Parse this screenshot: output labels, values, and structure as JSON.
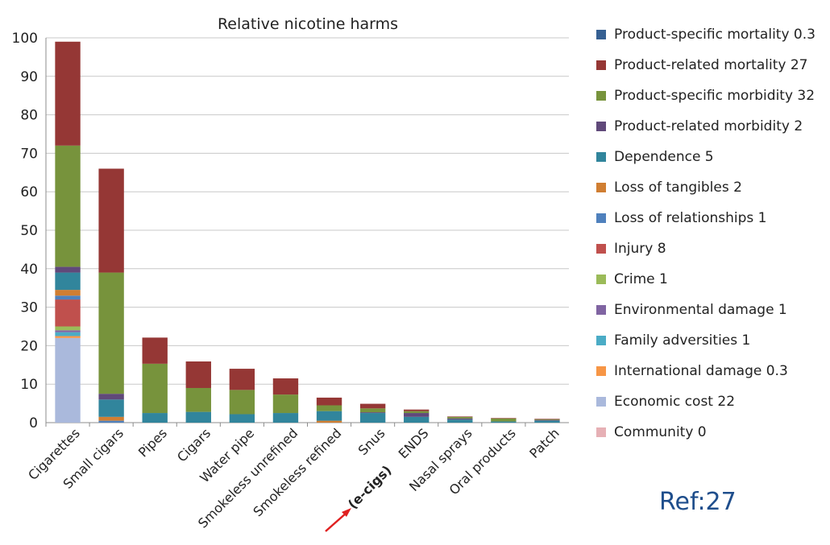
{
  "chart_data": {
    "type": "bar",
    "stacked": true,
    "title": "Relative nicotine harms",
    "categories": [
      "Cigarettes",
      "Small cigars",
      "Pipes",
      "Cigars",
      "Water pipe",
      "Smokeless unrefined",
      "Smokeless refined",
      "Snus",
      "ENDS",
      "Nasal sprays",
      "Oral products",
      "Patch"
    ],
    "annotation": "(e-cigs)",
    "ylim": [
      0,
      100
    ],
    "yticks": [
      0,
      10,
      20,
      30,
      40,
      50,
      60,
      70,
      80,
      90,
      100
    ],
    "grid": true,
    "legend_position": "right",
    "series": [
      {
        "name": "Community 0",
        "color": "#e6b0b5",
        "values": [
          0,
          0,
          0,
          0,
          0,
          0,
          0,
          0,
          0,
          0,
          0,
          0
        ]
      },
      {
        "name": "Economic cost 22",
        "color": "#aab9dc",
        "values": [
          22,
          0,
          0,
          0,
          0,
          0,
          0,
          0,
          0,
          0,
          0,
          0
        ]
      },
      {
        "name": "International damage 0.3",
        "color": "#f79646",
        "values": [
          0.5,
          0,
          0,
          0,
          0,
          0,
          0,
          0,
          0,
          0,
          0,
          0
        ]
      },
      {
        "name": "Family adversities 1",
        "color": "#4bacc6",
        "values": [
          1,
          0,
          0,
          0,
          0,
          0,
          0,
          0,
          0,
          0,
          0,
          0
        ]
      },
      {
        "name": "Environmental damage 1",
        "color": "#8064a2",
        "values": [
          0.5,
          0,
          0,
          0,
          0,
          0,
          0,
          0,
          0,
          0,
          0,
          0
        ]
      },
      {
        "name": "Crime 1",
        "color": "#9bbb59",
        "values": [
          1,
          0,
          0,
          0,
          0,
          0,
          0,
          0,
          0,
          0,
          0,
          0
        ]
      },
      {
        "name": "Injury 8",
        "color": "#c0504d",
        "values": [
          7,
          0,
          0,
          0,
          0,
          0,
          0,
          0,
          0,
          0,
          0,
          0
        ]
      },
      {
        "name": "Loss of relationships 1",
        "color": "#4f81bd",
        "values": [
          1,
          0.5,
          0,
          0,
          0,
          0,
          0,
          0,
          0,
          0,
          0,
          0
        ]
      },
      {
        "name": "Loss of tangibles 2",
        "color": "#d07e32",
        "values": [
          1.5,
          1,
          0,
          0,
          0,
          0,
          0.5,
          0,
          0,
          0,
          0,
          0
        ]
      },
      {
        "name": "Dependence 5",
        "color": "#31859c",
        "values": [
          4.5,
          4.5,
          2.5,
          2.8,
          2.2,
          2.5,
          2.5,
          2.5,
          1.5,
          0.8,
          0.3,
          0.5
        ]
      },
      {
        "name": "Product-related morbidity 2",
        "color": "#60497a",
        "values": [
          1.5,
          1.5,
          0,
          0,
          0,
          0,
          0,
          0.2,
          1,
          0.3,
          0,
          0.2
        ]
      },
      {
        "name": "Product-specific morbidity 32",
        "color": "#77933c",
        "values": [
          31.5,
          31.5,
          12.8,
          6.2,
          6.3,
          4.8,
          1.5,
          1,
          0.5,
          0.4,
          0.8,
          0.2
        ]
      },
      {
        "name": "Product-related mortality 27",
        "color": "#953735",
        "values": [
          27,
          27,
          6.8,
          6.9,
          5.5,
          4.2,
          2,
          1.2,
          0.4,
          0.1,
          0.1,
          0.1
        ]
      },
      {
        "name": "Product-specific mortality 0.3",
        "color": "#366092",
        "values": [
          0,
          0,
          0,
          0,
          0,
          0,
          0,
          0,
          0,
          0,
          0,
          0
        ]
      }
    ]
  },
  "legend_order": [
    13,
    12,
    11,
    10,
    9,
    8,
    7,
    6,
    5,
    4,
    3,
    2,
    1,
    0
  ],
  "ref_label": "Ref:27"
}
